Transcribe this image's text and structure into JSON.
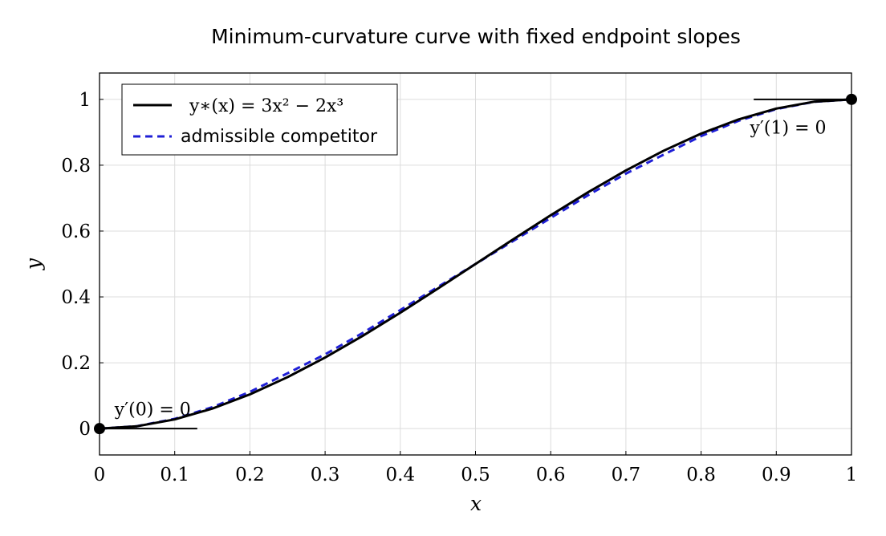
{
  "chart_data": {
    "type": "line",
    "title": "Minimum-curvature curve with fixed endpoint slopes",
    "xlabel": "x",
    "ylabel": "y",
    "xlim": [
      0,
      1
    ],
    "ylim": [
      -0.08,
      1.08
    ],
    "grid": true,
    "legend_position": "top-left",
    "x_ticks": [
      "0",
      "0.1",
      "0.2",
      "0.3",
      "0.4",
      "0.5",
      "0.6",
      "0.7",
      "0.8",
      "0.9",
      "1"
    ],
    "y_ticks": [
      "0",
      "0.2",
      "0.4",
      "0.6",
      "0.8",
      "1"
    ],
    "series": [
      {
        "name": "y∗(x) = 3x² − 2x³",
        "style": "solid",
        "color": "#000000",
        "x": [
          0,
          0.05,
          0.1,
          0.15,
          0.2,
          0.25,
          0.3,
          0.35,
          0.4,
          0.45,
          0.5,
          0.55,
          0.6,
          0.65,
          0.7,
          0.75,
          0.8,
          0.85,
          0.9,
          0.95,
          1
        ],
        "y": [
          0,
          0.00725,
          0.028,
          0.06075,
          0.104,
          0.15625,
          0.216,
          0.28175,
          0.352,
          0.42525,
          0.5,
          0.57475,
          0.648,
          0.71825,
          0.784,
          0.84375,
          0.896,
          0.93925,
          0.972,
          0.99275,
          1
        ]
      },
      {
        "name": "admissible competitor",
        "style": "dashed",
        "color": "#1f1fd6",
        "x": [
          0,
          0.05,
          0.1,
          0.15,
          0.2,
          0.25,
          0.3,
          0.35,
          0.4,
          0.45,
          0.5,
          0.55,
          0.6,
          0.65,
          0.7,
          0.75,
          0.8,
          0.85,
          0.9,
          0.95,
          1
        ],
        "y": [
          0,
          0.00749,
          0.02962,
          0.06502,
          0.1117,
          0.1681,
          0.2256,
          0.2906,
          0.3601,
          0.4303,
          0.5,
          0.5697,
          0.6399,
          0.7094,
          0.7744,
          0.8319,
          0.8883,
          0.935,
          0.9704,
          0.9925,
          1
        ]
      }
    ],
    "endpoints": [
      {
        "x": 0,
        "y": 0
      },
      {
        "x": 1,
        "y": 1
      }
    ],
    "tangent_segments": [
      {
        "x": [
          0,
          0.13
        ],
        "y": 0
      },
      {
        "x": [
          0.87,
          1
        ],
        "y": 1
      }
    ],
    "annotations": [
      {
        "text": "y′(0) = 0",
        "x": 0.02,
        "y": 0.06
      },
      {
        "text": "y′(1) = 0",
        "x": 0.865,
        "y": 0.915
      }
    ]
  }
}
